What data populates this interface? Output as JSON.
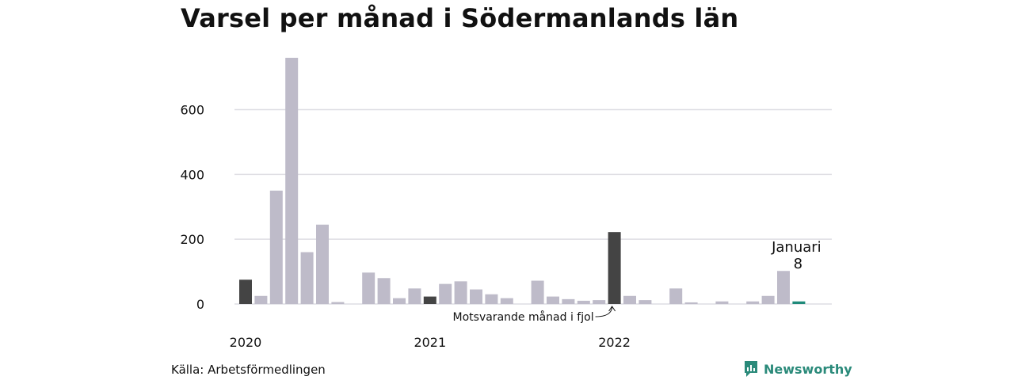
{
  "title": "Varsel per månad i Södermanlands län",
  "source": "Källa: Arbetsförmedlingen",
  "brand": {
    "name": "Newsworthy",
    "icon": "newsworthy-logo-icon"
  },
  "colors": {
    "bar_default": "#bebbc9",
    "bar_highlight": "#444444",
    "bar_latest": "#1f8a7a",
    "grid": "#dedde3",
    "brand": "#2a8a7a"
  },
  "chart_data": {
    "type": "bar",
    "title": "Varsel per månad i Södermanlands län",
    "xlabel": "",
    "ylabel": "",
    "ylim": [
      0,
      760
    ],
    "yticks": [
      0,
      200,
      400,
      600
    ],
    "ytick_labels": [
      "0",
      "200",
      "400",
      "600"
    ],
    "grid": true,
    "x_year_labels": [
      {
        "label": "2020",
        "index": 0
      },
      {
        "label": "2021",
        "index": 12
      },
      {
        "label": "2022",
        "index": 24
      }
    ],
    "categories": [
      "2020-01",
      "2020-02",
      "2020-03",
      "2020-04",
      "2020-05",
      "2020-06",
      "2020-07",
      "2020-08",
      "2020-09",
      "2020-10",
      "2020-11",
      "2020-12",
      "2021-01",
      "2021-02",
      "2021-03",
      "2021-04",
      "2021-05",
      "2021-06",
      "2021-07",
      "2021-08",
      "2021-09",
      "2021-10",
      "2021-11",
      "2021-12",
      "2022-01",
      "2022-02",
      "2022-03",
      "2022-04",
      "2022-05",
      "2022-06",
      "2022-07",
      "2022-08",
      "2022-09",
      "2022-10",
      "2022-11",
      "2022-12",
      "2023-01"
    ],
    "values": [
      75,
      25,
      350,
      760,
      160,
      245,
      6,
      0,
      97,
      80,
      18,
      48,
      23,
      62,
      70,
      45,
      30,
      18,
      0,
      72,
      23,
      15,
      10,
      12,
      222,
      25,
      12,
      0,
      48,
      5,
      0,
      8,
      0,
      8,
      25,
      102,
      8
    ],
    "highlight_indices": [
      0,
      12,
      24
    ],
    "latest_index": 36,
    "annotations": {
      "previous_year": {
        "text": "Motsvarande månad i fjol",
        "index": 24
      },
      "latest": {
        "month": "Januari",
        "value": "8"
      }
    }
  }
}
